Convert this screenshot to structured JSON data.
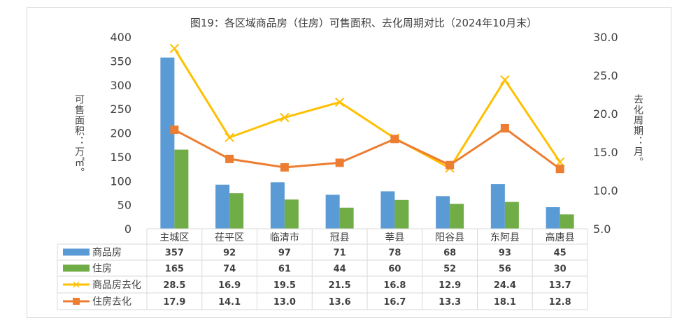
{
  "chart_data": {
    "type": "bar",
    "title": "图19：各区域商品房（住房）可售面积、去化周期对比（2024年10月末）",
    "ylabel": "可售面积：万㎡。",
    "y2label": "去化周期：月。",
    "ylim": [
      0,
      400
    ],
    "y2lim": [
      5,
      30
    ],
    "yticks": [
      "0",
      "50",
      "100",
      "150",
      "200",
      "250",
      "300",
      "350",
      "400"
    ],
    "y2ticks": [
      "5.0",
      "10.0",
      "15.0",
      "20.0",
      "25.0",
      "30.0"
    ],
    "categories": [
      "主城区",
      "茌平区",
      "临清市",
      "冠县",
      "莘县",
      "阳谷县",
      "东阿县",
      "高唐县"
    ],
    "series": [
      {
        "name": "商品房",
        "kind": "bar",
        "axis": "left",
        "color": "#5b9bd5",
        "values": [
          357,
          92,
          97,
          71,
          78,
          68,
          93,
          45
        ],
        "labels": [
          "357",
          "92",
          "97",
          "71",
          "78",
          "68",
          "93",
          "45"
        ]
      },
      {
        "name": "住房",
        "kind": "bar",
        "axis": "left",
        "color": "#70ad47",
        "values": [
          165,
          74,
          61,
          44,
          60,
          52,
          56,
          30
        ],
        "labels": [
          "165",
          "74",
          "61",
          "44",
          "60",
          "52",
          "56",
          "30"
        ]
      },
      {
        "name": "商品房去化",
        "kind": "line",
        "marker": "x",
        "axis": "right",
        "color": "#ffc000",
        "values": [
          28.5,
          16.9,
          19.5,
          21.5,
          16.8,
          12.9,
          24.4,
          13.7
        ],
        "labels": [
          "28.5",
          "16.9",
          "19.5",
          "21.5",
          "16.8",
          "12.9",
          "24.4",
          "13.7"
        ]
      },
      {
        "name": "住房去化",
        "kind": "line",
        "marker": "square",
        "axis": "right",
        "color": "#ed7d31",
        "values": [
          17.9,
          14.1,
          13.0,
          13.6,
          16.7,
          13.3,
          18.1,
          12.8
        ],
        "labels": [
          "17.9",
          "14.1",
          "13.0",
          "13.6",
          "16.7",
          "13.3",
          "18.1",
          "12.8"
        ]
      }
    ],
    "legend": "data-table"
  }
}
